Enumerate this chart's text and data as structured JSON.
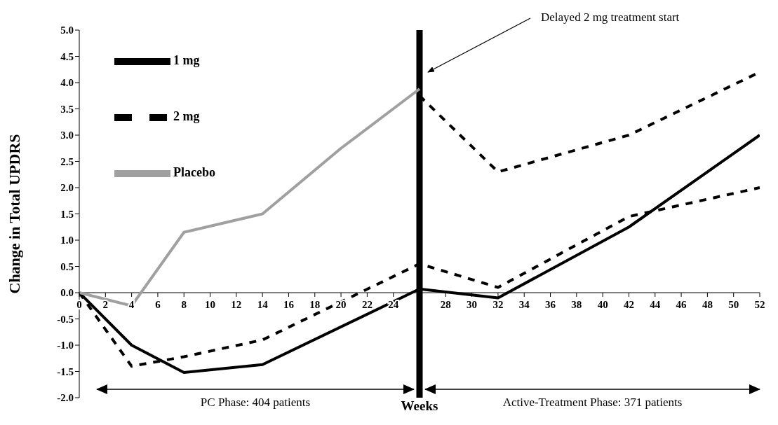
{
  "chart_data": {
    "type": "line",
    "ylabel": "Change in Total UPDRS",
    "xlabel": "Weeks",
    "xlim": [
      0,
      52
    ],
    "xticks": [
      0,
      2,
      4,
      6,
      8,
      10,
      12,
      14,
      16,
      18,
      20,
      22,
      24,
      {
        "value": 26,
        "label": null
      },
      28,
      30,
      32,
      34,
      36,
      38,
      40,
      42,
      44,
      46,
      48,
      50,
      52
    ],
    "ylim": [
      -2,
      5
    ],
    "yticks": [
      {
        "value": -2,
        "label": "-2.0"
      },
      {
        "value": -1.5,
        "label": "-1.5"
      },
      {
        "value": -1,
        "label": "-1.0"
      },
      {
        "value": -0.5,
        "label": "-0.5"
      },
      {
        "value": 0,
        "label": "0.0"
      },
      {
        "value": 0.5,
        "label": "0.5"
      },
      {
        "value": 1,
        "label": "1.0"
      },
      {
        "value": 1.5,
        "label": "1.5"
      },
      {
        "value": 2,
        "label": "2.0"
      },
      {
        "value": 2.5,
        "label": "2.5"
      },
      {
        "value": 3,
        "label": "3.0"
      },
      {
        "value": 3.5,
        "label": "3.5"
      },
      {
        "value": 4,
        "label": "4.0"
      },
      {
        "value": 4.5,
        "label": "4.5"
      },
      {
        "value": 5,
        "label": "5.0"
      }
    ],
    "series": [
      {
        "name": "1 mg",
        "color": "#000000",
        "line_style": "solid",
        "x": [
          0,
          4,
          8,
          14,
          26,
          32,
          42,
          52
        ],
        "values": [
          0,
          -1.0,
          -1.52,
          -1.37,
          0.07,
          -0.1,
          1.25,
          3.0
        ]
      },
      {
        "name": "2 mg",
        "color": "#000000",
        "line_style": "dashed",
        "x": [
          0,
          4,
          8,
          14,
          26,
          32,
          42,
          52
        ],
        "values": [
          0,
          -1.4,
          -1.22,
          -0.9,
          0.55,
          0.1,
          1.45,
          2.0
        ]
      },
      {
        "name": "Placebo",
        "color": "#a0a0a0",
        "line_style": "solid",
        "x": [
          0,
          4,
          8,
          14,
          20,
          26
        ],
        "values": [
          0,
          -0.25,
          1.15,
          1.5,
          2.75,
          3.88
        ]
      },
      {
        "color": "#000000",
        "line_style": "dashed",
        "x": [
          26,
          32,
          42,
          52
        ],
        "values": [
          3.75,
          2.3,
          3.0,
          4.2
        ]
      }
    ],
    "ref_lines": [
      {
        "axis": "x",
        "value": 26,
        "color": "#000000"
      }
    ],
    "legend": "top left",
    "grid": false,
    "marker": "none",
    "annotations": [
      "Delayed 2 mg treatment start",
      "PC Phase: 404 patients",
      "Active-Treatment Phase: 371 patients"
    ]
  }
}
